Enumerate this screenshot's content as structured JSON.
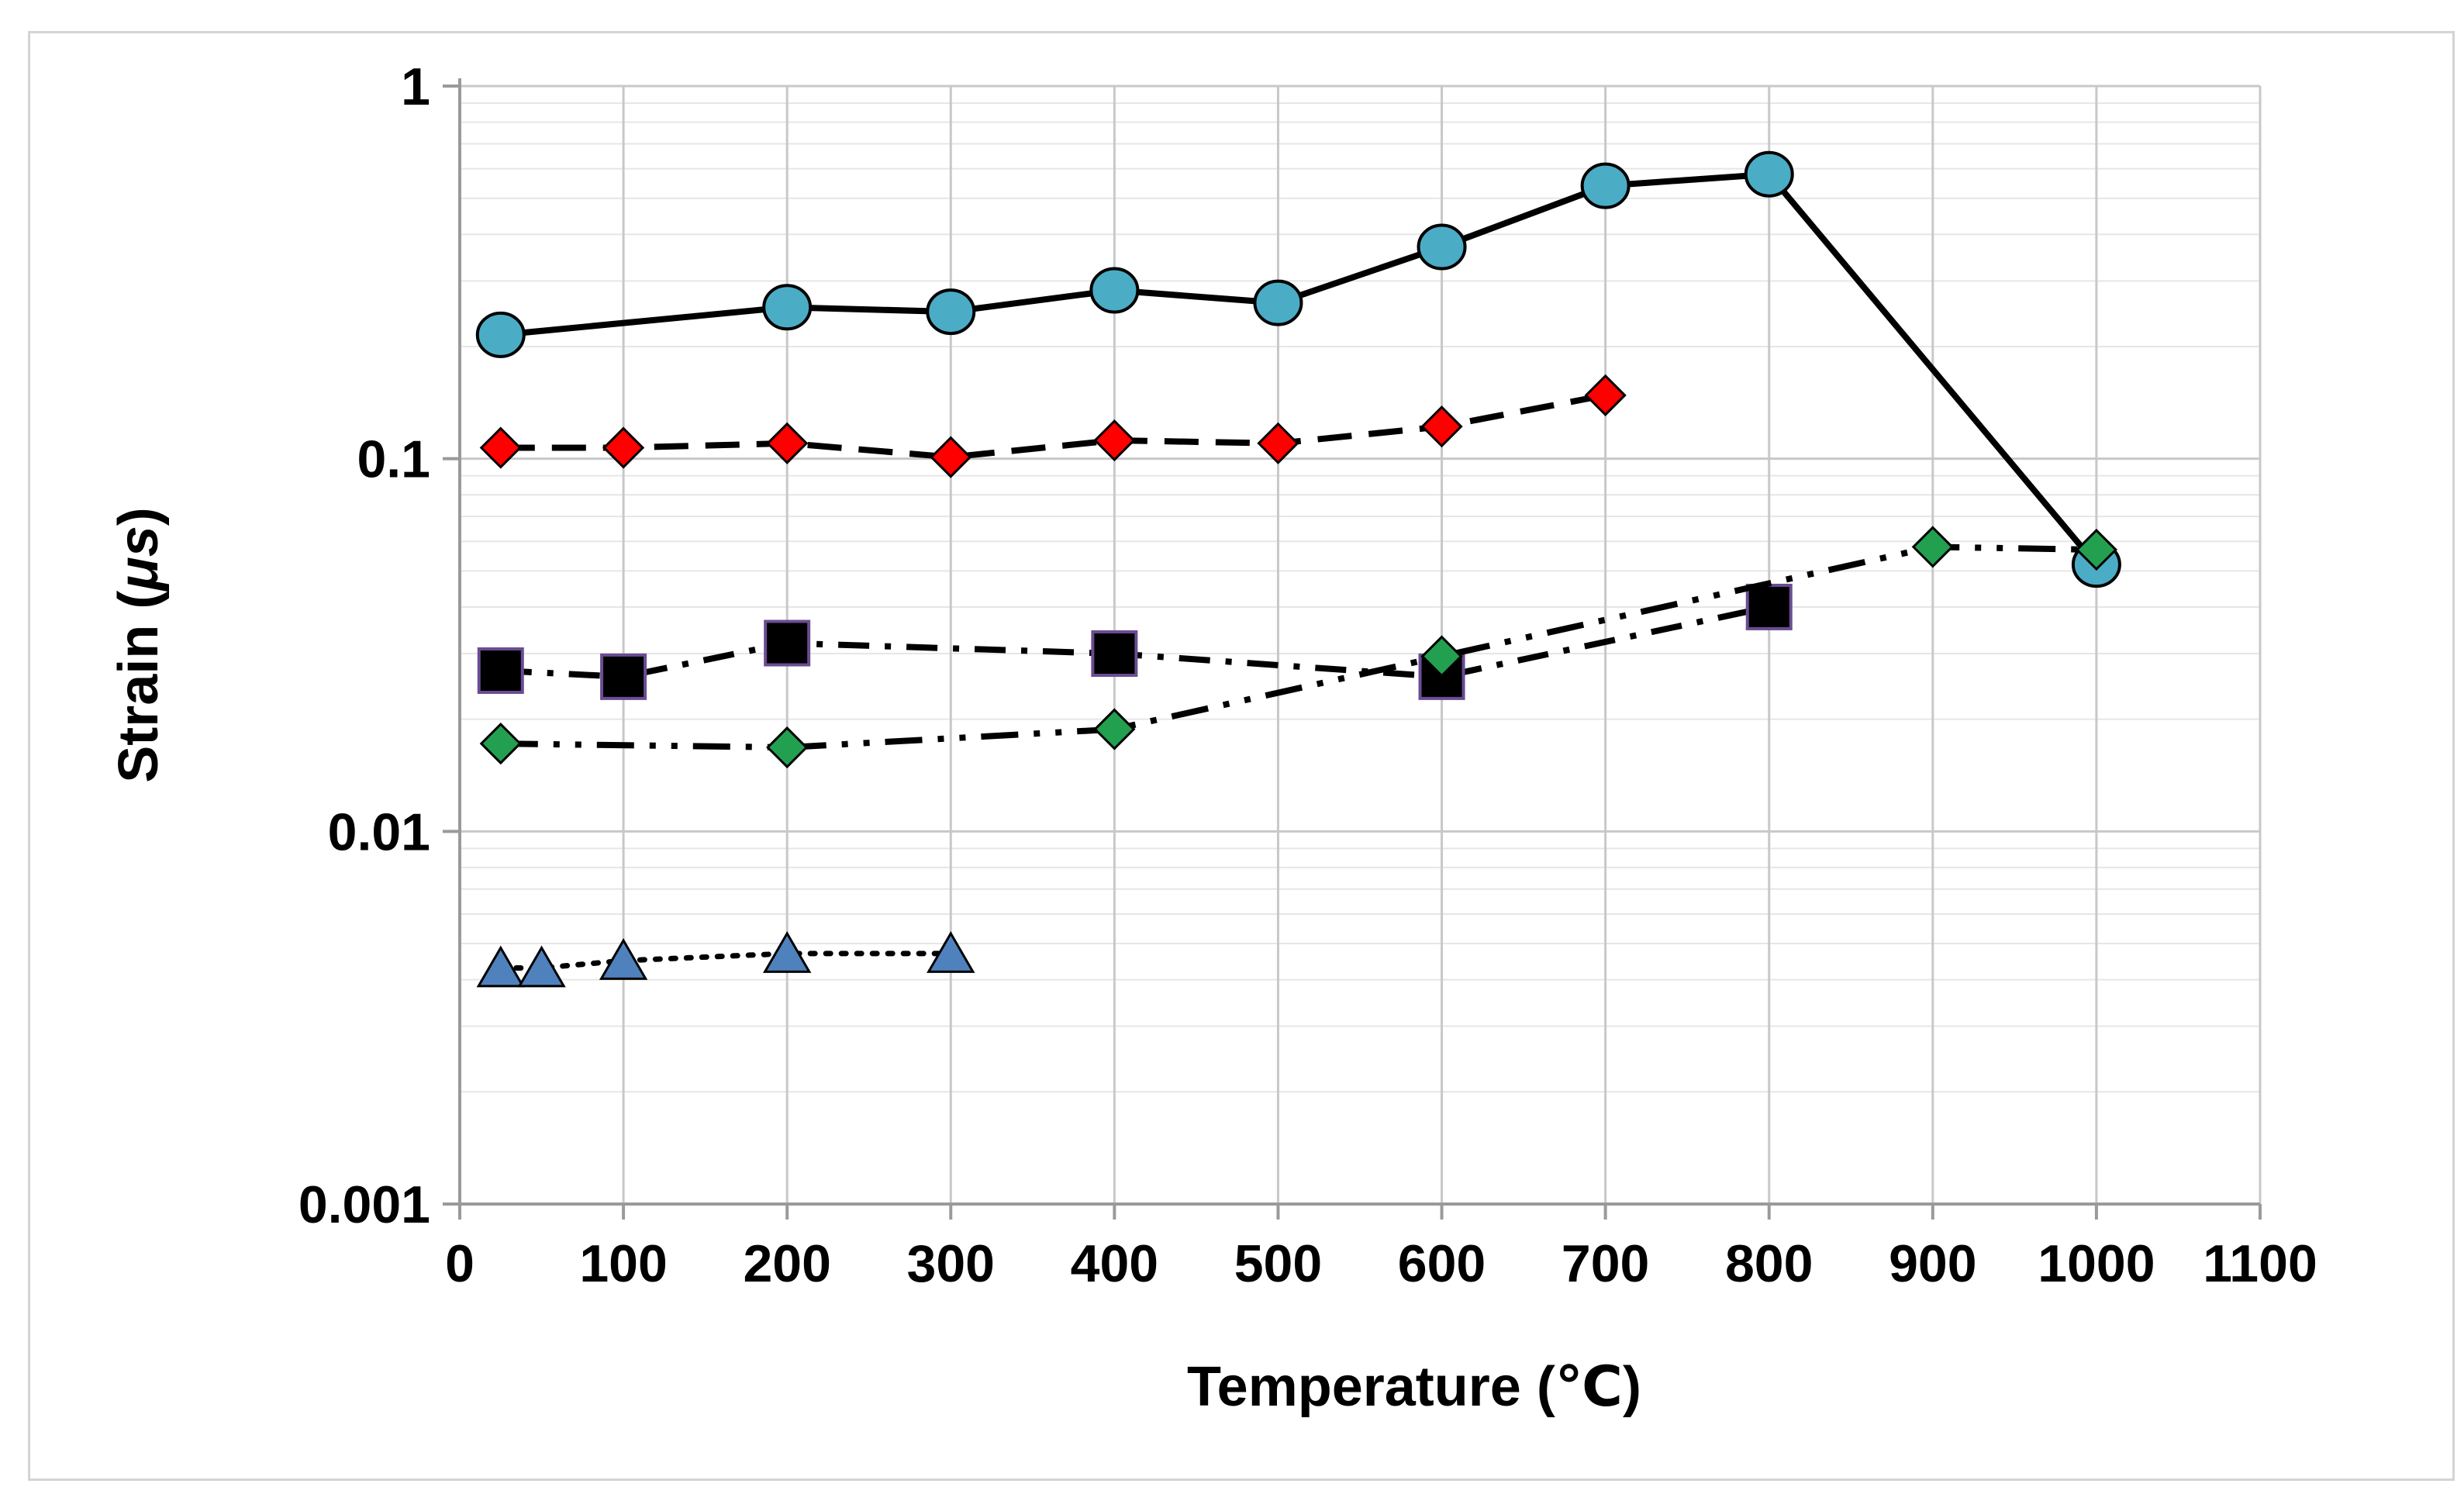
{
  "chart_data": {
    "type": "line",
    "title": "",
    "xlabel": "Temperature (℃)",
    "ylabel_prefix": "Strain (",
    "ylabel_symbol": "μs",
    "ylabel_suffix": ")",
    "x_scale": "linear",
    "y_scale": "log",
    "xlim": [
      0,
      1100
    ],
    "ylim": [
      0.001,
      1
    ],
    "x_ticks": [
      0,
      100,
      200,
      300,
      400,
      500,
      600,
      700,
      800,
      900,
      1000,
      1100
    ],
    "x_tick_labels": [
      "0",
      "100",
      "200",
      "300",
      "400",
      "500",
      "600",
      "700",
      "800",
      "900",
      "1000",
      "1100"
    ],
    "y_ticks": [
      0.001,
      0.01,
      0.1,
      1
    ],
    "y_tick_labels": [
      "0.001",
      "0.01",
      "0.1",
      "1"
    ],
    "grid": true,
    "legend": "none",
    "series": [
      {
        "name": "circles-solid",
        "marker": "circle",
        "line_style": "solid",
        "marker_color": "#4bacc6",
        "x": [
          25,
          200,
          300,
          400,
          500,
          600,
          700,
          800,
          1000
        ],
        "y": [
          0.215,
          0.255,
          0.248,
          0.283,
          0.262,
          0.37,
          0.54,
          0.58,
          0.052
        ]
      },
      {
        "name": "red-diamonds-dashed",
        "marker": "diamond",
        "line_style": "dashed",
        "marker_color": "#ff0000",
        "x": [
          25,
          100,
          200,
          300,
          400,
          500,
          600,
          700
        ],
        "y": [
          0.107,
          0.107,
          0.11,
          0.101,
          0.112,
          0.11,
          0.122,
          0.148
        ]
      },
      {
        "name": "black-squares-dashdot",
        "marker": "square",
        "line_style": "dashdot",
        "marker_color": "#000000",
        "x": [
          25,
          100,
          200,
          400,
          600,
          800
        ],
        "y": [
          0.027,
          0.026,
          0.032,
          0.03,
          0.026,
          0.04
        ]
      },
      {
        "name": "green-diamonds-dashdotdot",
        "marker": "diamond",
        "line_style": "dashdotdot",
        "marker_color": "#22a050",
        "x": [
          25,
          200,
          400,
          600,
          900,
          1000
        ],
        "y": [
          0.0172,
          0.0168,
          0.0188,
          0.0295,
          0.058,
          0.057
        ]
      },
      {
        "name": "blue-triangles-dotted",
        "marker": "triangle",
        "line_style": "dotted",
        "marker_color": "#4f81bd",
        "x": [
          25,
          50,
          100,
          200,
          300
        ],
        "y": [
          0.0043,
          0.0043,
          0.0045,
          0.0047,
          0.0047
        ]
      }
    ]
  }
}
